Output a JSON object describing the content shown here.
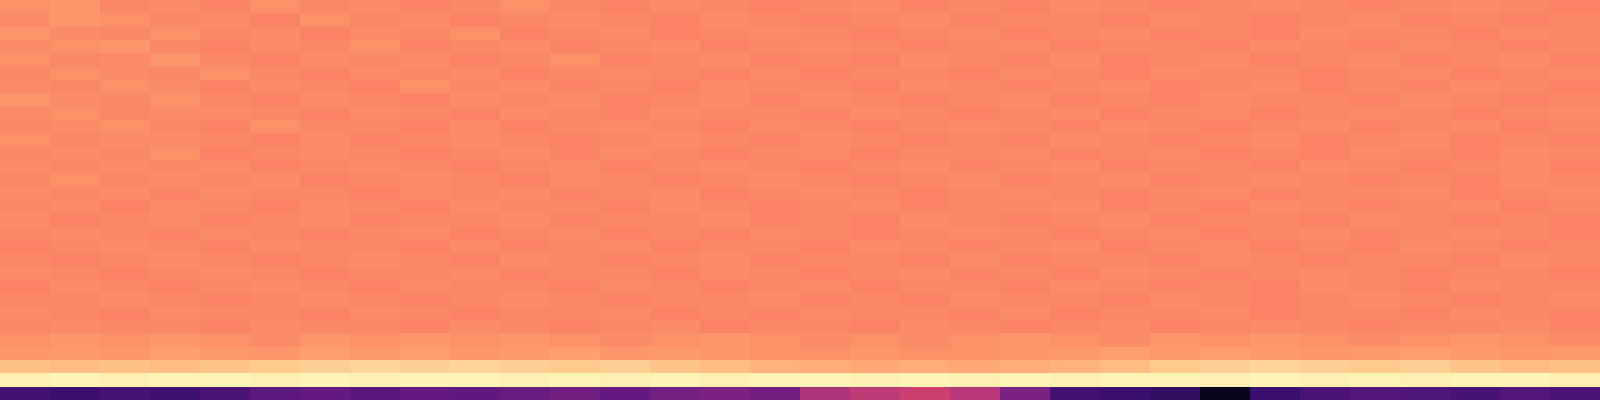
{
  "chart_data": {
    "type": "heatmap",
    "tick_labels": false,
    "color": "magma",
    "zlim": [
      0,
      1
    ],
    "z": [
      [
        0.77,
        0.78,
        0.75,
        0.76,
        0.74,
        0.77,
        0.75,
        0.76,
        0.74,
        0.75,
        0.77,
        0.75,
        0.74,
        0.76,
        0.75,
        0.74,
        0.75,
        0.76,
        0.74,
        0.75,
        0.74,
        0.76,
        0.75,
        0.74,
        0.75,
        0.76,
        0.75,
        0.74,
        0.75,
        0.76,
        0.75,
        0.74
      ],
      [
        0.76,
        0.78,
        0.77,
        0.75,
        0.76,
        0.74,
        0.77,
        0.75,
        0.76,
        0.74,
        0.75,
        0.76,
        0.75,
        0.74,
        0.76,
        0.75,
        0.74,
        0.75,
        0.76,
        0.74,
        0.75,
        0.75,
        0.74,
        0.76,
        0.75,
        0.74,
        0.75,
        0.76,
        0.74,
        0.75,
        0.74,
        0.75
      ],
      [
        0.78,
        0.76,
        0.75,
        0.77,
        0.75,
        0.76,
        0.74,
        0.76,
        0.75,
        0.77,
        0.74,
        0.75,
        0.76,
        0.74,
        0.75,
        0.76,
        0.75,
        0.74,
        0.75,
        0.76,
        0.74,
        0.75,
        0.76,
        0.74,
        0.75,
        0.74,
        0.76,
        0.75,
        0.75,
        0.74,
        0.76,
        0.75
      ],
      [
        0.76,
        0.77,
        0.78,
        0.75,
        0.74,
        0.76,
        0.75,
        0.77,
        0.74,
        0.75,
        0.76,
        0.74,
        0.75,
        0.76,
        0.74,
        0.75,
        0.76,
        0.75,
        0.74,
        0.75,
        0.76,
        0.74,
        0.75,
        0.75,
        0.74,
        0.76,
        0.75,
        0.74,
        0.76,
        0.75,
        0.74,
        0.75
      ],
      [
        0.77,
        0.75,
        0.76,
        0.78,
        0.75,
        0.74,
        0.76,
        0.75,
        0.76,
        0.74,
        0.75,
        0.77,
        0.74,
        0.75,
        0.76,
        0.74,
        0.75,
        0.74,
        0.76,
        0.75,
        0.74,
        0.76,
        0.74,
        0.75,
        0.76,
        0.74,
        0.75,
        0.76,
        0.74,
        0.75,
        0.76,
        0.74
      ],
      [
        0.75,
        0.77,
        0.76,
        0.75,
        0.77,
        0.75,
        0.74,
        0.76,
        0.75,
        0.76,
        0.74,
        0.75,
        0.76,
        0.75,
        0.74,
        0.76,
        0.74,
        0.75,
        0.75,
        0.74,
        0.76,
        0.75,
        0.74,
        0.76,
        0.75,
        0.75,
        0.74,
        0.75,
        0.76,
        0.74,
        0.75,
        0.76
      ],
      [
        0.76,
        0.75,
        0.77,
        0.76,
        0.74,
        0.76,
        0.75,
        0.74,
        0.77,
        0.75,
        0.76,
        0.74,
        0.75,
        0.74,
        0.76,
        0.75,
        0.75,
        0.74,
        0.76,
        0.75,
        0.74,
        0.75,
        0.76,
        0.74,
        0.75,
        0.76,
        0.74,
        0.75,
        0.74,
        0.76,
        0.75,
        0.74
      ],
      [
        0.78,
        0.76,
        0.75,
        0.77,
        0.75,
        0.74,
        0.76,
        0.75,
        0.74,
        0.76,
        0.75,
        0.76,
        0.74,
        0.75,
        0.76,
        0.74,
        0.76,
        0.75,
        0.74,
        0.75,
        0.76,
        0.74,
        0.75,
        0.74,
        0.76,
        0.75,
        0.75,
        0.74,
        0.76,
        0.75,
        0.74,
        0.75
      ],
      [
        0.76,
        0.77,
        0.75,
        0.76,
        0.76,
        0.75,
        0.74,
        0.76,
        0.75,
        0.74,
        0.76,
        0.75,
        0.74,
        0.76,
        0.75,
        0.75,
        0.74,
        0.76,
        0.75,
        0.74,
        0.75,
        0.76,
        0.74,
        0.75,
        0.76,
        0.74,
        0.75,
        0.76,
        0.75,
        0.74,
        0.75,
        0.76
      ],
      [
        0.75,
        0.76,
        0.77,
        0.75,
        0.74,
        0.77,
        0.75,
        0.75,
        0.74,
        0.76,
        0.74,
        0.75,
        0.76,
        0.75,
        0.74,
        0.76,
        0.75,
        0.74,
        0.75,
        0.76,
        0.75,
        0.74,
        0.76,
        0.75,
        0.74,
        0.75,
        0.76,
        0.74,
        0.75,
        0.76,
        0.74,
        0.75
      ],
      [
        0.77,
        0.75,
        0.76,
        0.76,
        0.75,
        0.74,
        0.76,
        0.74,
        0.75,
        0.76,
        0.75,
        0.74,
        0.75,
        0.76,
        0.75,
        0.74,
        0.76,
        0.75,
        0.74,
        0.75,
        0.74,
        0.76,
        0.75,
        0.74,
        0.75,
        0.76,
        0.74,
        0.75,
        0.76,
        0.74,
        0.75,
        0.74
      ],
      [
        0.75,
        0.76,
        0.75,
        0.77,
        0.74,
        0.75,
        0.76,
        0.75,
        0.74,
        0.75,
        0.76,
        0.74,
        0.76,
        0.75,
        0.74,
        0.75,
        0.76,
        0.74,
        0.75,
        0.75,
        0.76,
        0.74,
        0.75,
        0.76,
        0.74,
        0.75,
        0.74,
        0.76,
        0.75,
        0.74,
        0.76,
        0.75
      ],
      [
        0.76,
        0.75,
        0.76,
        0.75,
        0.76,
        0.74,
        0.75,
        0.76,
        0.75,
        0.74,
        0.75,
        0.76,
        0.74,
        0.75,
        0.76,
        0.75,
        0.74,
        0.75,
        0.76,
        0.74,
        0.75,
        0.76,
        0.74,
        0.75,
        0.75,
        0.74,
        0.76,
        0.75,
        0.74,
        0.75,
        0.76,
        0.74
      ],
      [
        0.75,
        0.77,
        0.75,
        0.76,
        0.75,
        0.76,
        0.74,
        0.75,
        0.76,
        0.75,
        0.74,
        0.76,
        0.75,
        0.74,
        0.75,
        0.76,
        0.75,
        0.74,
        0.75,
        0.76,
        0.74,
        0.75,
        0.76,
        0.74,
        0.75,
        0.76,
        0.75,
        0.74,
        0.75,
        0.74,
        0.76,
        0.75
      ],
      [
        0.76,
        0.75,
        0.76,
        0.74,
        0.76,
        0.75,
        0.75,
        0.74,
        0.76,
        0.75,
        0.76,
        0.74,
        0.75,
        0.76,
        0.74,
        0.75,
        0.76,
        0.75,
        0.74,
        0.75,
        0.76,
        0.75,
        0.74,
        0.75,
        0.76,
        0.74,
        0.75,
        0.75,
        0.76,
        0.74,
        0.75,
        0.76
      ],
      [
        0.75,
        0.76,
        0.74,
        0.76,
        0.75,
        0.74,
        0.76,
        0.75,
        0.74,
        0.76,
        0.75,
        0.75,
        0.74,
        0.76,
        0.75,
        0.74,
        0.75,
        0.76,
        0.74,
        0.75,
        0.75,
        0.76,
        0.74,
        0.75,
        0.74,
        0.76,
        0.75,
        0.74,
        0.75,
        0.76,
        0.74,
        0.75
      ],
      [
        0.76,
        0.74,
        0.75,
        0.76,
        0.74,
        0.75,
        0.76,
        0.74,
        0.75,
        0.75,
        0.76,
        0.74,
        0.75,
        0.75,
        0.76,
        0.74,
        0.75,
        0.74,
        0.76,
        0.75,
        0.74,
        0.75,
        0.76,
        0.74,
        0.75,
        0.75,
        0.74,
        0.76,
        0.75,
        0.74,
        0.75,
        0.74
      ],
      [
        0.75,
        0.76,
        0.75,
        0.74,
        0.76,
        0.75,
        0.74,
        0.75,
        0.76,
        0.74,
        0.75,
        0.76,
        0.74,
        0.75,
        0.74,
        0.76,
        0.75,
        0.74,
        0.75,
        0.76,
        0.75,
        0.74,
        0.75,
        0.76,
        0.74,
        0.75,
        0.76,
        0.74,
        0.75,
        0.76,
        0.75,
        0.74
      ],
      [
        0.74,
        0.75,
        0.76,
        0.75,
        0.74,
        0.76,
        0.75,
        0.75,
        0.74,
        0.76,
        0.74,
        0.75,
        0.76,
        0.74,
        0.75,
        0.75,
        0.74,
        0.76,
        0.75,
        0.74,
        0.75,
        0.76,
        0.74,
        0.75,
        0.76,
        0.74,
        0.75,
        0.74,
        0.76,
        0.75,
        0.74,
        0.75
      ],
      [
        0.75,
        0.74,
        0.75,
        0.76,
        0.75,
        0.74,
        0.75,
        0.76,
        0.75,
        0.74,
        0.76,
        0.75,
        0.74,
        0.75,
        0.76,
        0.74,
        0.75,
        0.75,
        0.74,
        0.76,
        0.74,
        0.75,
        0.75,
        0.74,
        0.76,
        0.75,
        0.74,
        0.75,
        0.75,
        0.74,
        0.76,
        0.75
      ],
      [
        0.76,
        0.75,
        0.74,
        0.75,
        0.76,
        0.75,
        0.74,
        0.75,
        0.75,
        0.76,
        0.74,
        0.75,
        0.75,
        0.74,
        0.76,
        0.75,
        0.74,
        0.75,
        0.76,
        0.74,
        0.75,
        0.74,
        0.76,
        0.75,
        0.74,
        0.75,
        0.76,
        0.75,
        0.74,
        0.75,
        0.75,
        0.74
      ],
      [
        0.74,
        0.76,
        0.75,
        0.74,
        0.75,
        0.76,
        0.75,
        0.74,
        0.76,
        0.75,
        0.75,
        0.74,
        0.76,
        0.75,
        0.74,
        0.75,
        0.76,
        0.74,
        0.75,
        0.75,
        0.74,
        0.76,
        0.75,
        0.74,
        0.75,
        0.74,
        0.76,
        0.75,
        0.74,
        0.76,
        0.75,
        0.75
      ],
      [
        0.75,
        0.75,
        0.76,
        0.75,
        0.74,
        0.75,
        0.76,
        0.75,
        0.74,
        0.75,
        0.76,
        0.75,
        0.74,
        0.75,
        0.75,
        0.76,
        0.74,
        0.75,
        0.74,
        0.76,
        0.75,
        0.75,
        0.74,
        0.76,
        0.75,
        0.74,
        0.75,
        0.76,
        0.75,
        0.74,
        0.75,
        0.76
      ],
      [
        0.76,
        0.75,
        0.74,
        0.76,
        0.75,
        0.75,
        0.74,
        0.76,
        0.75,
        0.74,
        0.75,
        0.75,
        0.76,
        0.74,
        0.75,
        0.74,
        0.76,
        0.75,
        0.75,
        0.74,
        0.76,
        0.74,
        0.75,
        0.75,
        0.76,
        0.74,
        0.75,
        0.75,
        0.74,
        0.76,
        0.75,
        0.74
      ],
      [
        0.75,
        0.76,
        0.75,
        0.75,
        0.74,
        0.76,
        0.75,
        0.75,
        0.74,
        0.76,
        0.75,
        0.74,
        0.75,
        0.76,
        0.74,
        0.75,
        0.75,
        0.74,
        0.76,
        0.75,
        0.74,
        0.75,
        0.76,
        0.74,
        0.75,
        0.76,
        0.75,
        0.74,
        0.75,
        0.75,
        0.76,
        0.74
      ],
      [
        0.77,
        0.78,
        0.77,
        0.78,
        0.77,
        0.76,
        0.78,
        0.77,
        0.78,
        0.77,
        0.78,
        0.77,
        0.76,
        0.77,
        0.78,
        0.77,
        0.76,
        0.77,
        0.76,
        0.77,
        0.78,
        0.77,
        0.76,
        0.78,
        0.77,
        0.78,
        0.77,
        0.76,
        0.77,
        0.78,
        0.77,
        0.76
      ],
      [
        0.78,
        0.79,
        0.78,
        0.8,
        0.79,
        0.78,
        0.8,
        0.79,
        0.8,
        0.78,
        0.79,
        0.8,
        0.78,
        0.79,
        0.78,
        0.77,
        0.77,
        0.78,
        0.77,
        0.77,
        0.78,
        0.79,
        0.8,
        0.79,
        0.8,
        0.79,
        0.78,
        0.79,
        0.8,
        0.79,
        0.78,
        0.79
      ],
      [
        0.87,
        0.86,
        0.87,
        0.86,
        0.88,
        0.89,
        0.9,
        0.91,
        0.9,
        0.91,
        0.9,
        0.89,
        0.9,
        0.88,
        0.86,
        0.84,
        0.83,
        0.82,
        0.83,
        0.82,
        0.83,
        0.84,
        0.86,
        0.89,
        0.9,
        0.91,
        0.9,
        0.89,
        0.9,
        0.88,
        0.86,
        0.87
      ],
      [
        0.97,
        0.98,
        0.97,
        0.98,
        0.98,
        0.97,
        0.98,
        0.97,
        0.98,
        0.98,
        0.97,
        0.98,
        0.97,
        0.98,
        0.97,
        0.98,
        0.98,
        0.97,
        0.98,
        0.97,
        0.98,
        0.97,
        0.98,
        0.98,
        0.97,
        0.98,
        0.97,
        0.98,
        0.97,
        0.98,
        0.98,
        0.97
      ],
      [
        0.22,
        0.2,
        0.23,
        0.21,
        0.24,
        0.28,
        0.3,
        0.27,
        0.3,
        0.29,
        0.31,
        0.33,
        0.3,
        0.34,
        0.36,
        0.33,
        0.48,
        0.52,
        0.55,
        0.5,
        0.36,
        0.22,
        0.2,
        0.18,
        0.05,
        0.2,
        0.24,
        0.26,
        0.25,
        0.23,
        0.26,
        0.24
      ]
    ]
  }
}
